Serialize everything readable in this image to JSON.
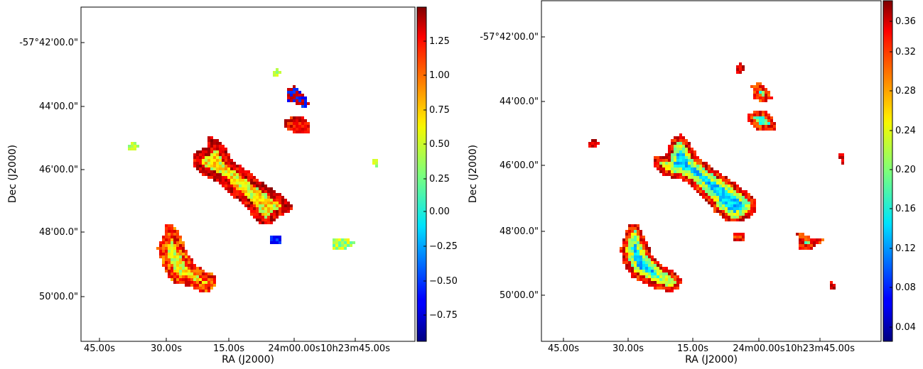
{
  "chart_data": [
    {
      "type": "heatmap",
      "title": "",
      "xlabel": "RA (J2000)",
      "ylabel": "Dec (J2000)",
      "x_tick_labels": [
        "45.00s",
        "30.00s",
        "15.00s",
        "24m00.00s",
        "10h23m45.00s"
      ],
      "y_tick_labels": [
        "-57°42'00.0\"",
        "44'00.0\"",
        "46'00.0\"",
        "48'00.0\"",
        "50'00.0\""
      ],
      "colorbar": {
        "colormap": "jet",
        "range": [
          -0.95,
          1.5
        ],
        "ticks": [
          "1.25",
          "1.00",
          "0.75",
          "0.50",
          "0.25",
          "0.00",
          "−0.25",
          "−0.50",
          "−0.75"
        ],
        "tick_values": [
          1.25,
          1.0,
          0.75,
          0.5,
          0.25,
          0.0,
          -0.25,
          -0.5,
          -0.75
        ]
      },
      "blobs": [
        {
          "region": "central ridge",
          "value_range": [
            -0.2,
            1.3
          ]
        },
        {
          "region": "south-west clump",
          "value_range": [
            -0.3,
            1.2
          ]
        },
        {
          "region": "north-east knot",
          "value_range": [
            -0.6,
            1.3
          ]
        },
        {
          "region": "isolated knots",
          "value_range": [
            0.0,
            0.5
          ]
        }
      ]
    },
    {
      "type": "heatmap",
      "title": "",
      "xlabel": "RA (J2000)",
      "ylabel": "Dec (J2000)",
      "x_tick_labels": [
        "45.00s",
        "30.00s",
        "15.00s",
        "24m00.00s",
        "10h23m45.00s"
      ],
      "y_tick_labels": [
        "-57°42'00.0\"",
        "44'00.0\"",
        "46'00.0\"",
        "48'00.0\"",
        "50'00.0\""
      ],
      "colorbar": {
        "colormap": "jet",
        "range": [
          0.025,
          0.375
        ],
        "ticks": [
          "0.36",
          "0.32",
          "0.28",
          "0.24",
          "0.20",
          "0.16",
          "0.12",
          "0.08",
          "0.04"
        ],
        "tick_values": [
          0.36,
          0.32,
          0.28,
          0.24,
          0.2,
          0.16,
          0.12,
          0.08,
          0.04
        ]
      },
      "blobs": [
        {
          "region": "central ridge",
          "value_range": [
            0.06,
            0.3
          ]
        },
        {
          "region": "south-west clump",
          "value_range": [
            0.06,
            0.3
          ]
        },
        {
          "region": "north-east knot",
          "value_range": [
            0.15,
            0.36
          ]
        },
        {
          "region": "isolated knots",
          "value_range": [
            0.2,
            0.36
          ]
        }
      ]
    }
  ]
}
